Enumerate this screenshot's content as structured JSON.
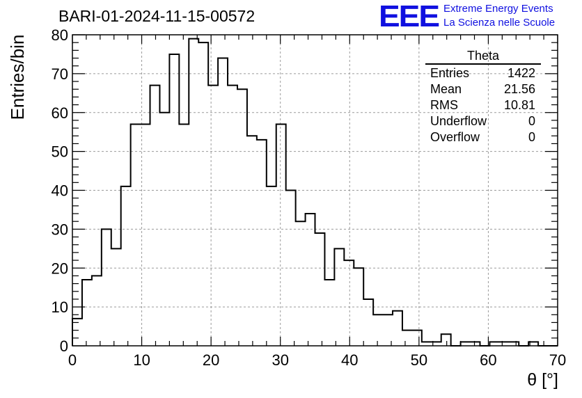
{
  "title": "BARI-01-2024-11-15-00572",
  "logo": {
    "mark": "EEE",
    "line1": "Extreme Energy Events",
    "line2": "La Scienza nelle Scuole",
    "color": "#1010e0"
  },
  "stats": {
    "title": "Theta",
    "rows": [
      {
        "label": "Entries",
        "value": "1422"
      },
      {
        "label": "Mean",
        "value": "21.56"
      },
      {
        "label": "RMS",
        "value": "10.81"
      },
      {
        "label": "Underflow",
        "value": "0"
      },
      {
        "label": "Overflow",
        "value": "0"
      }
    ]
  },
  "chart_data": {
    "type": "histogram",
    "title": "BARI-01-2024-11-15-00572",
    "xlabel": "θ [°]",
    "ylabel": "Entries/bin",
    "xlim": [
      0,
      70
    ],
    "ylim": [
      0,
      80
    ],
    "bin_width": 1.4,
    "xticks": [
      0,
      10,
      20,
      30,
      40,
      50,
      60,
      70
    ],
    "yticks": [
      0,
      10,
      20,
      30,
      40,
      50,
      60,
      70,
      80
    ],
    "grid": true,
    "bin_counts": [
      7,
      17,
      18,
      30,
      25,
      41,
      57,
      57,
      67,
      60,
      75,
      57,
      79,
      78,
      67,
      74,
      67,
      66,
      54,
      53,
      41,
      57,
      40,
      32,
      34,
      29,
      17,
      25,
      22,
      20,
      12,
      8,
      8,
      9,
      4,
      4,
      1,
      1,
      3,
      0,
      1,
      1,
      0,
      1,
      1,
      1,
      0,
      1,
      0,
      0
    ],
    "line_color": "#000000"
  }
}
